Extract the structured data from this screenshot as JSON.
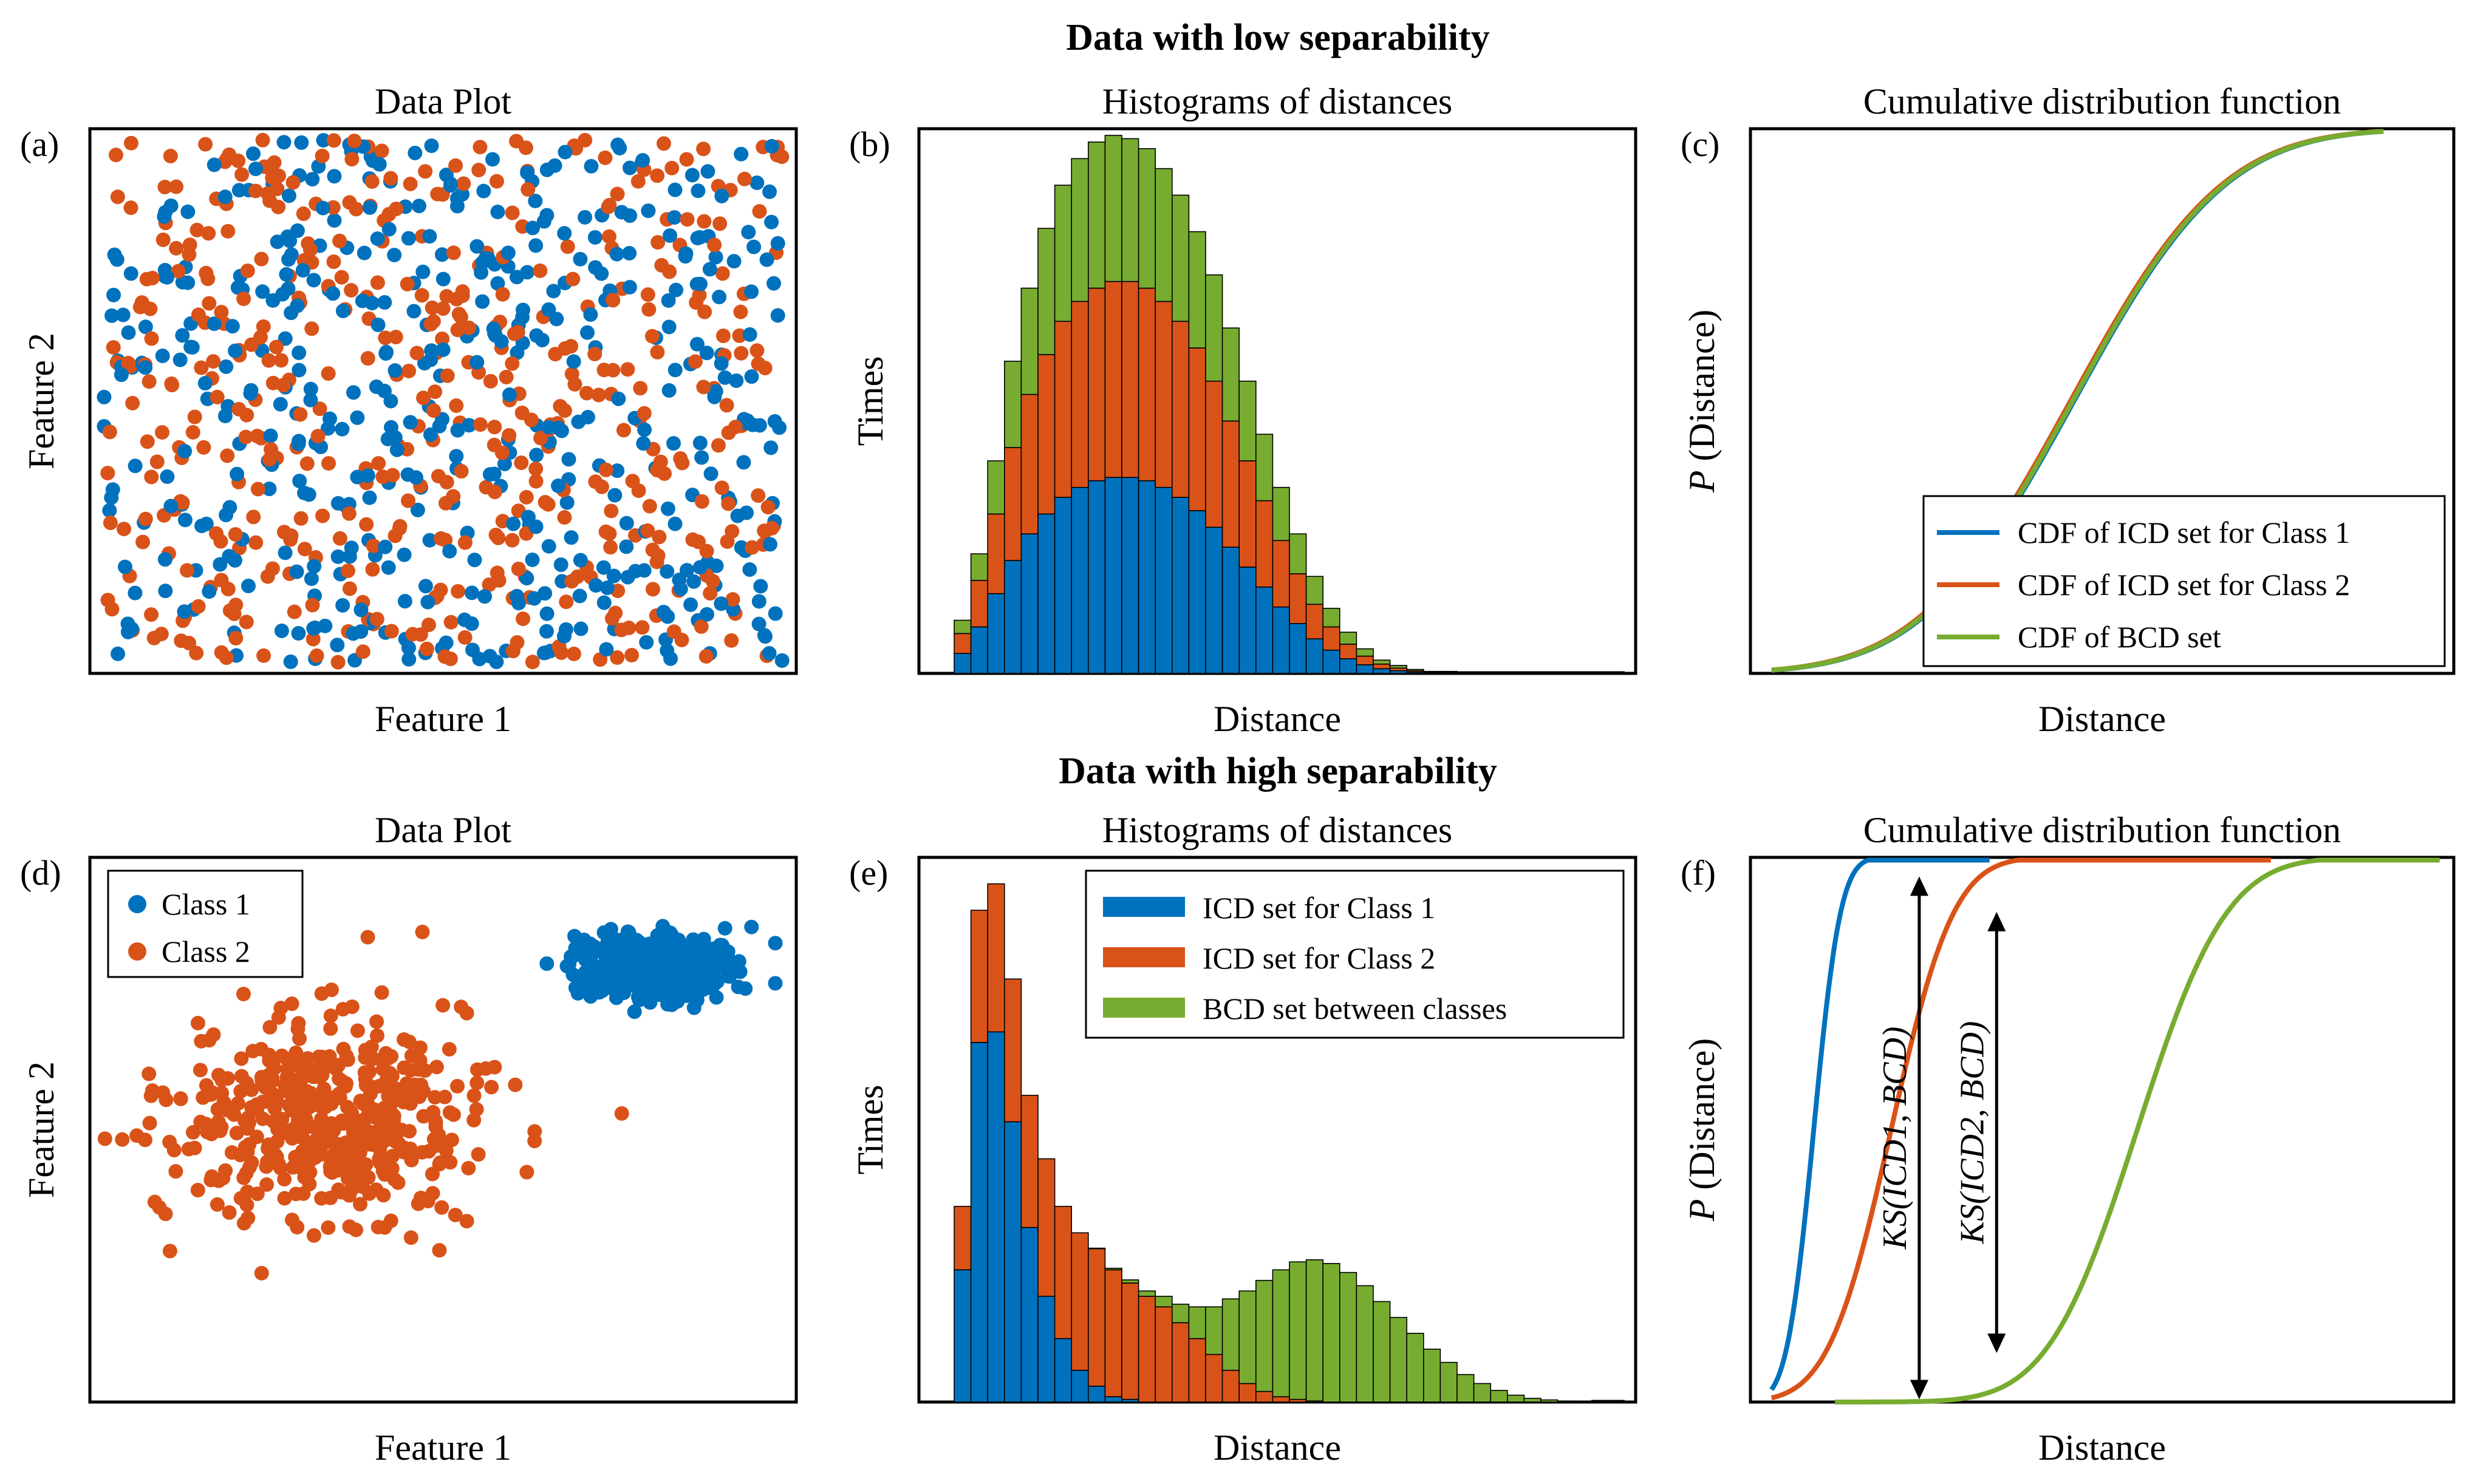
{
  "colors": {
    "class1": "#0072BD",
    "class2": "#D95319",
    "bcd": "#77AC30"
  },
  "top_title": "Data with low separability",
  "bottom_title": "Data with high separability",
  "chart_data": [
    {
      "id": "a",
      "panel_label": "(a)",
      "type": "scatter",
      "title": "Data Plot",
      "xlabel": "Feature 1",
      "ylabel": "Feature 2",
      "xlim": [
        0,
        1
      ],
      "ylim": [
        0,
        1
      ],
      "series": [
        {
          "name": "Class 1",
          "color": "#0072BD",
          "distribution": "uniform",
          "n": 500,
          "xrange": [
            0.02,
            0.98
          ],
          "yrange": [
            0.02,
            0.98
          ]
        },
        {
          "name": "Class 2",
          "color": "#D95319",
          "distribution": "uniform",
          "n": 500,
          "xrange": [
            0.02,
            0.98
          ],
          "yrange": [
            0.02,
            0.98
          ]
        }
      ]
    },
    {
      "id": "b",
      "panel_label": "(b)",
      "type": "bar",
      "title": "Histograms of distances",
      "xlabel": "Distance",
      "ylabel": "Times",
      "stacked": true,
      "ylim": [
        0,
        8.2
      ],
      "bins_start": 0,
      "series": [
        {
          "name": "ICD set for Class 1",
          "color": "#0072BD",
          "values": [
            0.3,
            0.7,
            1.2,
            1.7,
            2.1,
            2.4,
            2.65,
            2.8,
            2.9,
            2.95,
            2.95,
            2.9,
            2.8,
            2.65,
            2.45,
            2.2,
            1.9,
            1.6,
            1.3,
            1.0,
            0.75,
            0.52,
            0.35,
            0.22,
            0.13,
            0.07,
            0.04,
            0.02,
            0.01,
            0.01,
            0,
            0,
            0,
            0,
            0,
            0,
            0,
            0,
            0,
            0
          ]
        },
        {
          "name": "ICD set for Class 2",
          "color": "#D95319",
          "values": [
            0.3,
            0.7,
            1.2,
            1.7,
            2.1,
            2.4,
            2.65,
            2.8,
            2.9,
            2.95,
            2.95,
            2.9,
            2.8,
            2.65,
            2.45,
            2.2,
            1.9,
            1.6,
            1.3,
            1.0,
            0.75,
            0.52,
            0.35,
            0.22,
            0.13,
            0.07,
            0.04,
            0.02,
            0.01,
            0.01,
            0,
            0,
            0,
            0,
            0,
            0,
            0,
            0,
            0,
            0
          ]
        },
        {
          "name": "BCD set between classes",
          "color": "#77AC30",
          "values": [
            0.2,
            0.4,
            0.8,
            1.3,
            1.6,
            1.9,
            2.05,
            2.15,
            2.2,
            2.2,
            2.15,
            2.1,
            2.0,
            1.9,
            1.75,
            1.6,
            1.4,
            1.2,
            1.0,
            0.8,
            0.6,
            0.42,
            0.28,
            0.18,
            0.11,
            0.06,
            0.04,
            0.02,
            0.01,
            0.01,
            0,
            0,
            0,
            0,
            0,
            0,
            0,
            0,
            0,
            0
          ]
        }
      ]
    },
    {
      "id": "c",
      "panel_label": "(c)",
      "type": "line",
      "title": "Cumulative distribution function",
      "xlabel": "Distance",
      "ylabel_italic": "P",
      "ylabel_rest": " (Distance)",
      "xlim": [
        0,
        1
      ],
      "ylim": [
        0,
        1
      ],
      "series": [
        {
          "name": "CDF of ICD set for Class 1",
          "color": "#0072BD",
          "curve": "normal_cdf",
          "mean": 0.46,
          "sd": 0.17,
          "start": 0.03,
          "end": 0.9
        },
        {
          "name": "CDF of ICD set for Class 2",
          "color": "#D95319",
          "curve": "normal_cdf",
          "mean": 0.455,
          "sd": 0.17,
          "start": 0.03,
          "end": 0.9
        },
        {
          "name": "CDF of BCD set",
          "color": "#77AC30",
          "curve": "normal_cdf",
          "mean": 0.458,
          "sd": 0.17,
          "start": 0.03,
          "end": 0.9
        }
      ],
      "legend": {
        "location": "bottom-right",
        "entries": [
          "CDF of ICD set for Class 1",
          "CDF of ICD set for Class 2",
          "CDF of BCD set"
        ]
      }
    },
    {
      "id": "d",
      "panel_label": "(d)",
      "type": "scatter",
      "title": "Data Plot",
      "xlabel": "Feature 1",
      "ylabel": "Feature 2",
      "xlim": [
        0,
        1
      ],
      "ylim": [
        0,
        1
      ],
      "series": [
        {
          "name": "Class 1",
          "color": "#0072BD",
          "distribution": "normal",
          "n": 500,
          "mean": [
            0.8,
            0.8
          ],
          "sd": [
            0.055,
            0.03
          ]
        },
        {
          "name": "Class 2",
          "color": "#D95319",
          "distribution": "normal",
          "n": 500,
          "mean": [
            0.34,
            0.51
          ],
          "sd": [
            0.11,
            0.09
          ]
        }
      ],
      "legend": {
        "location": "top-left",
        "entries": [
          "Class 1",
          "Class 2"
        ]
      }
    },
    {
      "id": "e",
      "panel_label": "(e)",
      "type": "bar",
      "title": "Histograms of distances",
      "xlabel": "Distance",
      "ylabel": "Times",
      "stacked": true,
      "ylim": [
        0,
        10.3
      ],
      "bins_start": 0,
      "series": [
        {
          "name": "ICD set for Class 1",
          "color": "#0072BD",
          "values": [
            2.5,
            6.8,
            7.0,
            5.3,
            3.3,
            2.0,
            1.2,
            0.6,
            0.3,
            0.1,
            0.05,
            0,
            0,
            0,
            0,
            0,
            0,
            0,
            0,
            0,
            0,
            0,
            0,
            0,
            0,
            0,
            0,
            0,
            0,
            0,
            0,
            0,
            0,
            0,
            0,
            0,
            0,
            0,
            0,
            0
          ]
        },
        {
          "name": "ICD set for Class 2",
          "color": "#D95319",
          "values": [
            1.2,
            2.5,
            2.8,
            2.7,
            2.5,
            2.6,
            2.5,
            2.6,
            2.6,
            2.4,
            2.2,
            2.0,
            1.8,
            1.5,
            1.2,
            0.9,
            0.6,
            0.35,
            0.2,
            0.1,
            0.05,
            0.02,
            0,
            0,
            0,
            0,
            0,
            0,
            0,
            0,
            0,
            0,
            0,
            0,
            0,
            0,
            0,
            0,
            0,
            0
          ]
        },
        {
          "name": "BCD set between classes",
          "color": "#77AC30",
          "values": [
            0,
            0,
            0,
            0,
            0,
            0,
            0,
            0,
            0.01,
            0.03,
            0.06,
            0.1,
            0.2,
            0.35,
            0.6,
            0.9,
            1.35,
            1.75,
            2.1,
            2.4,
            2.6,
            2.67,
            2.62,
            2.45,
            2.2,
            1.9,
            1.6,
            1.3,
            1.0,
            0.75,
            0.52,
            0.35,
            0.22,
            0.13,
            0.07,
            0.04,
            0.02,
            0.01,
            0,
            0
          ]
        }
      ],
      "legend": {
        "location": "top-right",
        "entries": [
          "ICD set for Class 1",
          "ICD set for Class 2",
          "BCD set between classes"
        ]
      }
    },
    {
      "id": "f",
      "panel_label": "(f)",
      "type": "line",
      "title": "Cumulative distribution function",
      "xlabel": "Distance",
      "ylabel_italic": "P",
      "ylabel_rest": " (Distance)",
      "xlim": [
        0,
        1
      ],
      "ylim": [
        0,
        1
      ],
      "series": [
        {
          "name": "CDF of ICD set for Class 1",
          "color": "#0072BD",
          "curve": "normal_cdf",
          "mean": 0.09,
          "sd": 0.03,
          "start": 0.03,
          "end": 0.34
        },
        {
          "name": "CDF of ICD set for Class 2",
          "color": "#D95319",
          "curve": "normal_cdf",
          "mean": 0.2,
          "sd": 0.07,
          "start": 0.03,
          "end": 0.74
        },
        {
          "name": "CDF of BCD set",
          "color": "#77AC30",
          "curve": "normal_cdf",
          "mean": 0.55,
          "sd": 0.1,
          "start": 0.12,
          "end": 0.98
        }
      ],
      "annotations": [
        {
          "text": "KS(ICD1, BCD)",
          "x": 0.24,
          "y_from": 0.005,
          "y_to": 0.965
        },
        {
          "text": "KS(ICD2, BCD)",
          "x": 0.35,
          "y_from": 0.09,
          "y_to": 0.9
        }
      ]
    }
  ]
}
